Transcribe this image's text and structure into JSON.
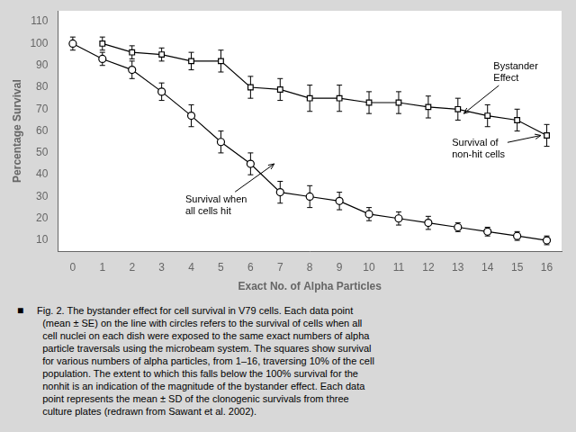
{
  "chart_data": {
    "type": "line",
    "xlabel": "Exact No. of Alpha Particles",
    "ylabel": "Percentage Survival",
    "xlim": [
      -0.5,
      16.5
    ],
    "ylim": [
      5,
      115
    ],
    "xticks": [
      0,
      1,
      2,
      3,
      4,
      5,
      6,
      7,
      8,
      9,
      10,
      11,
      12,
      13,
      14,
      15,
      16
    ],
    "yticks": [
      10,
      20,
      30,
      40,
      50,
      60,
      70,
      80,
      90,
      100,
      110
    ],
    "grid": false,
    "series": [
      {
        "x": [
          0,
          1,
          2,
          3,
          4,
          5,
          6,
          7,
          8,
          9,
          10,
          11,
          12,
          13,
          14,
          15,
          16
        ],
        "values": [
          100,
          93,
          88,
          78,
          67,
          55,
          45,
          32,
          30,
          28,
          22,
          20,
          18,
          16,
          14,
          12,
          10
        ],
        "errors": [
          3,
          3,
          4,
          4,
          5,
          5,
          5,
          5,
          5,
          4,
          3,
          3,
          3,
          2,
          2,
          2,
          2
        ],
        "color": "#000000",
        "marker": "circle",
        "line_style": "solid"
      },
      {
        "x": [
          1,
          2,
          3,
          4,
          5,
          6,
          7,
          8,
          9,
          10,
          11,
          12,
          13,
          14,
          15,
          16
        ],
        "values": [
          100,
          96,
          95,
          92,
          92,
          80,
          79,
          75,
          75,
          73,
          73,
          71,
          70,
          67,
          65,
          58
        ],
        "errors": [
          3,
          3,
          3,
          4,
          5,
          5,
          5,
          6,
          6,
          5,
          5,
          5,
          5,
          5,
          5,
          5
        ],
        "color": "#000000",
        "marker": "square",
        "line_style": "solid"
      }
    ],
    "annotations": [
      {
        "text": "Bystander\nEffect",
        "x": 13.2,
        "y": 68,
        "text_x": 14.2,
        "text_y": 87
      },
      {
        "text": "Survival of\nnon-hit cells",
        "x": 15.8,
        "y": 58,
        "text_x": 12.8,
        "text_y": 52
      },
      {
        "text": "Survival when\nall cells hit",
        "x": 6.8,
        "y": 45,
        "text_x": 3.8,
        "text_y": 26
      }
    ],
    "caption_bullet": "■",
    "caption": " Fig. 2. The bystander effect for cell survival in V79 cells. Each data point\n   (mean ± SE) on the line with circles refers to the survival of cells when all\n   cell nuclei on each dish were exposed to the same exact numbers of alpha\n   particle traversals using the microbeam system. The squares show survival\n   for various numbers of alpha particles, from 1–16, traversing 10% of the cell\n   population. The extent to which this falls below the 100% survival for the\n   nonhit is an indication of the magnitude of the bystander effect. Each data\n   point represents the mean ± SD of the clonogenic survivals from three\n   culture plates (redrawn from Sawant et al. 2002)."
  }
}
